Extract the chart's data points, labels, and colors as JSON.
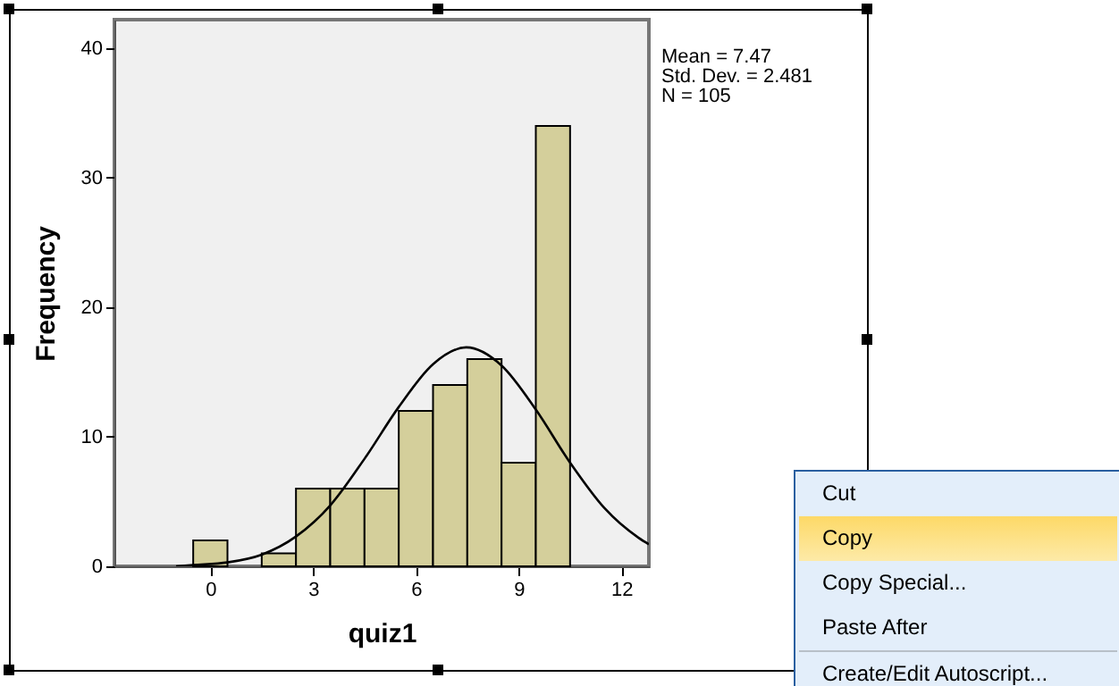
{
  "chart_data": {
    "type": "histogram",
    "xlabel": "quiz1",
    "ylabel": "Frequency",
    "bins": [
      -0.5,
      0.5,
      1.5,
      2.5,
      3.5,
      4.5,
      5.5,
      6.5,
      7.5,
      8.5,
      9.5,
      10.5
    ],
    "values": [
      2,
      0,
      1,
      6,
      6,
      6,
      12,
      14,
      16,
      8,
      34
    ],
    "color": "#d4cf9b",
    "xlim": [
      -2.8,
      12.8
    ],
    "ylim": [
      0,
      42.2
    ],
    "xticks": [
      0,
      3,
      6,
      9,
      12
    ],
    "yticks": [
      0,
      10,
      20,
      30,
      40
    ],
    "series": [
      {
        "type": "line",
        "color": "#000000",
        "x": [
          -1,
          -0.5,
          0.5,
          1.5,
          2.5,
          3.5,
          4.5,
          5.5,
          6.5,
          7.47,
          8.5,
          9.5,
          10.5,
          11.5,
          12.5,
          12.8
        ],
        "values": [
          0,
          0.1,
          0.3,
          0.9,
          2.3,
          4.7,
          8.3,
          12.3,
          15.6,
          16.9,
          15.5,
          12.1,
          8.0,
          4.5,
          2.2,
          1.7
        ]
      }
    ],
    "annotations": [
      "Mean = 7.47",
      "Std. Dev. = 2.481",
      "N = 105",
      "Cut",
      "Copy",
      "Copy Special...",
      "Paste After",
      "Create/Edit Autoscript..."
    ]
  }
}
